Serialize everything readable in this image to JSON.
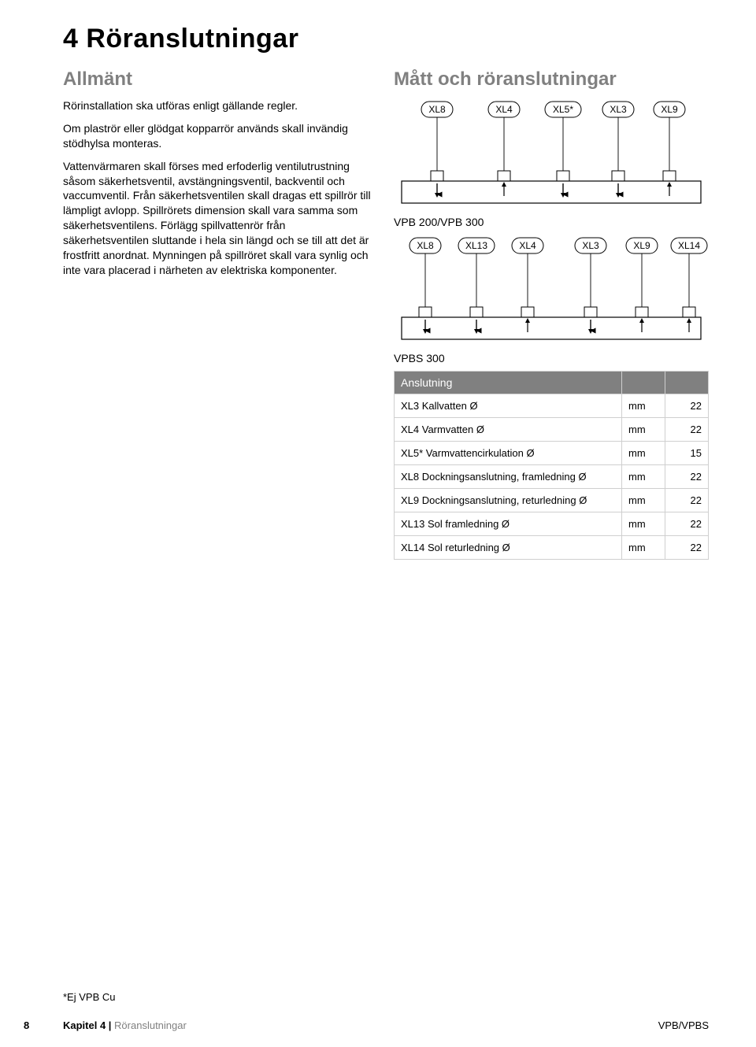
{
  "heading": "4 Röranslutningar",
  "left": {
    "subheading": "Allmänt",
    "p1": "Rörinstallation ska utföras enligt gällande regler.",
    "p2": "Om plaströr eller glödgat kopparrör används skall invändig stödhylsa monteras.",
    "p3": "Vattenvärmaren skall förses med erfoderlig ventilutrustning såsom säkerhetsventil, avstängningsventil, backventil och vaccumventil. Från säkerhetsventilen skall dragas ett spillrör till lämpligt avlopp. Spillrörets dimension skall vara samma som säkerhetsventilens. Förlägg spillvattenrör från säkerhetsventilen sluttande i hela sin längd och se till att det är frostfritt anordnat. Mynningen på spillröret skall vara synlig och inte vara placerad i närheten av elektriska komponenter."
  },
  "right": {
    "subheading": "Mått och röranslutningar",
    "diagram1_labels": [
      "XL8",
      "XL4",
      "XL5*",
      "XL3",
      "XL9"
    ],
    "caption1": "VPB 200/VPB 300",
    "diagram2_labels": [
      "XL8",
      "XL13",
      "XL4",
      "XL3",
      "XL9",
      "XL14"
    ],
    "caption2": "VPBS 300",
    "table": {
      "header": "Anslutning",
      "rows": [
        {
          "name": "XL3 Kallvatten Ø",
          "unit": "mm",
          "val": "22"
        },
        {
          "name": "XL4 Varmvatten Ø",
          "unit": "mm",
          "val": "22"
        },
        {
          "name": "XL5* Varmvattencirkulation Ø",
          "unit": "mm",
          "val": "15"
        },
        {
          "name": "XL8 Dockningsanslutning, framledning Ø",
          "unit": "mm",
          "val": "22"
        },
        {
          "name": "XL9 Dockningsanslutning, returledning Ø",
          "unit": "mm",
          "val": "22"
        },
        {
          "name": "XL13 Sol framledning Ø",
          "unit": "mm",
          "val": "22"
        },
        {
          "name": "XL14 Sol returledning Ø",
          "unit": "mm",
          "val": "22"
        }
      ]
    }
  },
  "footnote": "*Ej VPB Cu",
  "footer": {
    "page": "8",
    "chapter_bold": "Kapitel 4 | ",
    "chapter_grey": "Röranslutningar",
    "product": "VPB/VPBS"
  },
  "style": {
    "label_stroke": "#000000",
    "diagram_stroke": "#000000",
    "arrow_fill": "#000000",
    "bg": "#ffffff",
    "font_label": 12
  }
}
